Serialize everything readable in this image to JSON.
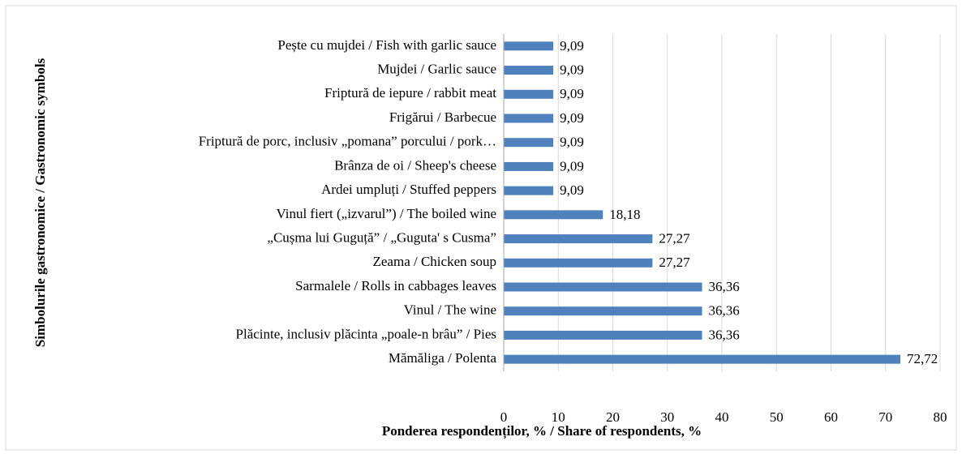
{
  "chart_data": {
    "type": "barh",
    "xlabel": "Ponderea respondenților, % / Share of respondents, %",
    "ylabel": "Simbolurile gastronomice / Gastronomic symbols",
    "categories": [
      "Pește cu mujdei / Fish with garlic sauce",
      "Mujdei / Garlic sauce",
      "Friptură de iepure / rabbit meat",
      "Frigărui / Barbecue",
      "Friptură de porc, inclusiv „pomana” porcului / pork…",
      "Brânza de oi / Sheep's cheese",
      "Ardei umpluți / Stuffed peppers",
      "Vinul fiert („izvarul”) / The boiled wine",
      "„Cușma lui Guguță” / „Guguta' s Cusma”",
      "Zeama / Chicken soup",
      "Sarmalele / Rolls in cabbages leaves",
      "Vinul / The wine",
      "Plăcinte, inclusiv plăcinta „poale-n brâu” / Pies",
      "Mămăliga / Polenta"
    ],
    "values": [
      9.09,
      9.09,
      9.09,
      9.09,
      9.09,
      9.09,
      9.09,
      18.18,
      27.27,
      27.27,
      36.36,
      36.36,
      36.36,
      72.72
    ],
    "value_labels": [
      "9,09",
      "9,09",
      "9,09",
      "9,09",
      "9,09",
      "9,09",
      "9,09",
      "18,18",
      "27,27",
      "27,27",
      "36,36",
      "36,36",
      "36,36",
      "72,72"
    ],
    "color": "#4f81bd",
    "xlim": [
      0,
      80
    ],
    "xticks": [
      0,
      10,
      20,
      30,
      40,
      50,
      60,
      70,
      80
    ],
    "grid": true
  }
}
